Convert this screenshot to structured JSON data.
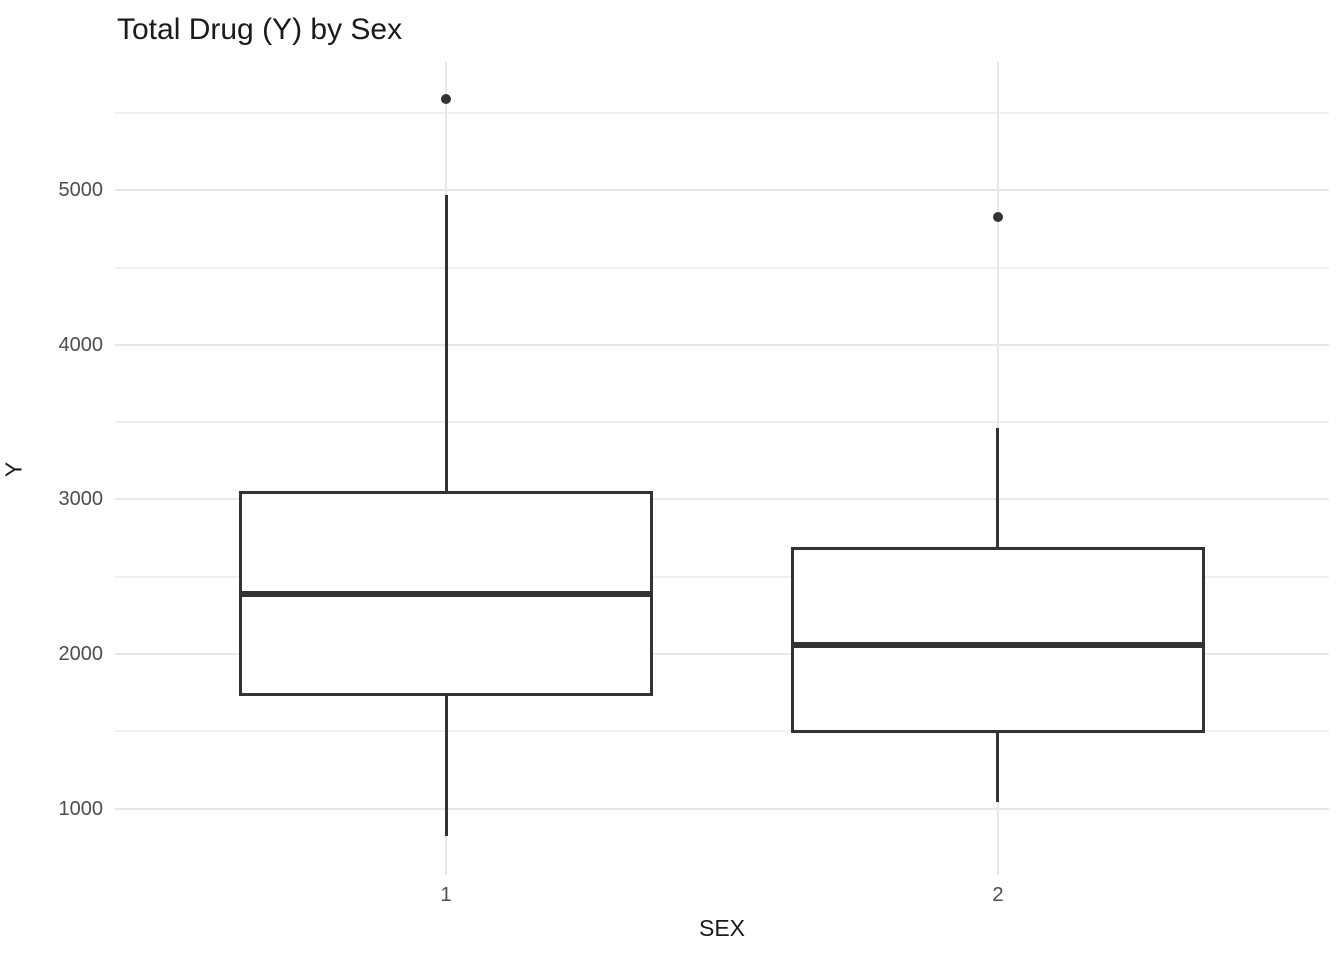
{
  "chart_data": {
    "type": "boxplot",
    "title": "Total Drug (Y) by Sex",
    "xlabel": "SEX",
    "ylabel": "Y",
    "categories": [
      "1",
      "2"
    ],
    "y_ticks": [
      1000,
      2000,
      3000,
      4000,
      5000
    ],
    "y_minor_ticks": [
      1500,
      2500,
      3500,
      4500,
      5500
    ],
    "ylim": [
      570,
      5830
    ],
    "grid": "on",
    "legend": "none",
    "series": [
      {
        "name": "SEX 1",
        "category": "1",
        "whisker_low": 820,
        "q1": 1725,
        "median": 2390,
        "q3": 3055,
        "whisker_high": 4970,
        "outliers": [
          5590
        ]
      },
      {
        "name": "SEX 2",
        "category": "2",
        "whisker_low": 1045,
        "q1": 1490,
        "median": 2055,
        "q3": 2690,
        "whisker_high": 3465,
        "outliers": [
          4825
        ]
      }
    ],
    "colors": {
      "box_border": "#333333",
      "median": "#333333",
      "whisker": "#333333",
      "outlier": "#333333",
      "grid_major": "#e8e8e8",
      "grid_minor": "#efefef",
      "background": "#ffffff",
      "tick_label": "#4d4d4d",
      "axis_title": "#1a1a1a",
      "title": "#1a1a1a"
    }
  }
}
